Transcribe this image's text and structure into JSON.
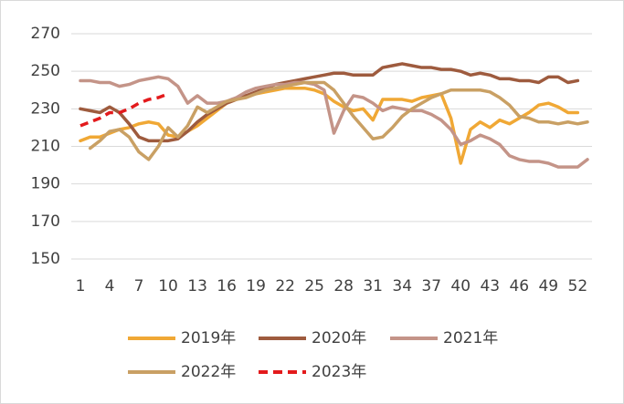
{
  "chart_data": {
    "type": "line",
    "x": [
      1,
      2,
      3,
      4,
      5,
      6,
      7,
      8,
      9,
      10,
      11,
      12,
      13,
      14,
      15,
      16,
      17,
      18,
      19,
      20,
      21,
      22,
      23,
      24,
      25,
      26,
      27,
      28,
      29,
      30,
      31,
      32,
      33,
      34,
      35,
      36,
      37,
      38,
      39,
      40,
      41,
      42,
      43,
      44,
      45,
      46,
      47,
      48,
      49,
      50,
      51,
      52,
      53
    ],
    "xlim": [
      1,
      53
    ],
    "xticks": [
      1,
      4,
      7,
      10,
      13,
      16,
      19,
      22,
      25,
      28,
      31,
      34,
      37,
      40,
      43,
      46,
      49,
      52
    ],
    "ylim": [
      150,
      270
    ],
    "yticks": [
      150,
      170,
      190,
      210,
      230,
      250,
      270
    ],
    "grid": true,
    "legend": "bottom",
    "series": [
      {
        "name": "2019年",
        "color": "#f0a835",
        "style": "solid",
        "values": [
          213,
          215,
          215,
          217,
          219,
          220,
          222,
          223,
          222,
          216,
          215,
          218,
          221,
          225,
          229,
          233,
          235,
          237,
          238,
          239,
          240,
          241,
          241,
          241,
          240,
          238,
          234,
          231,
          229,
          230,
          224,
          235,
          235,
          235,
          234,
          236,
          237,
          238,
          225,
          201,
          219,
          223,
          220,
          224,
          222,
          225,
          228,
          232,
          233,
          231,
          228,
          228,
          null
        ]
      },
      {
        "name": "2020年",
        "color": "#9e5b3e",
        "style": "solid",
        "values": [
          230,
          229,
          228,
          231,
          228,
          222,
          215,
          213,
          213,
          213,
          214,
          218,
          223,
          227,
          230,
          233,
          235,
          237,
          239,
          241,
          243,
          244,
          245,
          246,
          247,
          248,
          249,
          249,
          248,
          248,
          248,
          252,
          253,
          254,
          253,
          252,
          252,
          251,
          251,
          250,
          248,
          249,
          248,
          246,
          246,
          245,
          245,
          244,
          247,
          247,
          244,
          245,
          null
        ]
      },
      {
        "name": "2021年",
        "color": "#c49488",
        "style": "solid",
        "values": [
          245,
          245,
          244,
          244,
          242,
          243,
          245,
          246,
          247,
          246,
          242,
          233,
          237,
          233,
          233,
          234,
          236,
          239,
          241,
          242,
          243,
          243,
          244,
          244,
          243,
          240,
          217,
          229,
          237,
          236,
          233,
          229,
          231,
          230,
          229,
          229,
          227,
          224,
          219,
          211,
          213,
          216,
          214,
          211,
          205,
          203,
          202,
          202,
          201,
          199,
          199,
          199,
          203
        ]
      },
      {
        "name": "2022年",
        "color": "#c9a064",
        "style": "solid",
        "values": [
          null,
          209,
          213,
          218,
          219,
          215,
          207,
          203,
          210,
          220,
          215,
          221,
          231,
          228,
          231,
          234,
          235,
          236,
          238,
          240,
          241,
          242,
          243,
          244,
          244,
          244,
          240,
          233,
          226,
          220,
          214,
          215,
          220,
          226,
          230,
          233,
          236,
          238,
          240,
          240,
          240,
          240,
          239,
          236,
          232,
          226,
          225,
          223,
          223,
          222,
          223,
          222,
          223
        ]
      },
      {
        "name": "2023年",
        "color": "#e31a1c",
        "style": "dashed",
        "values": [
          221,
          223,
          225,
          228,
          228,
          230,
          233,
          235,
          236,
          238,
          null,
          null,
          null,
          null,
          null,
          null,
          null,
          null,
          null,
          null,
          null,
          null,
          null,
          null,
          null,
          null,
          null,
          null,
          null,
          null,
          null,
          null,
          null,
          null,
          null,
          null,
          null,
          null,
          null,
          null,
          null,
          null,
          null,
          null,
          null,
          null,
          null,
          null,
          null,
          null,
          null,
          null,
          null
        ]
      }
    ]
  }
}
